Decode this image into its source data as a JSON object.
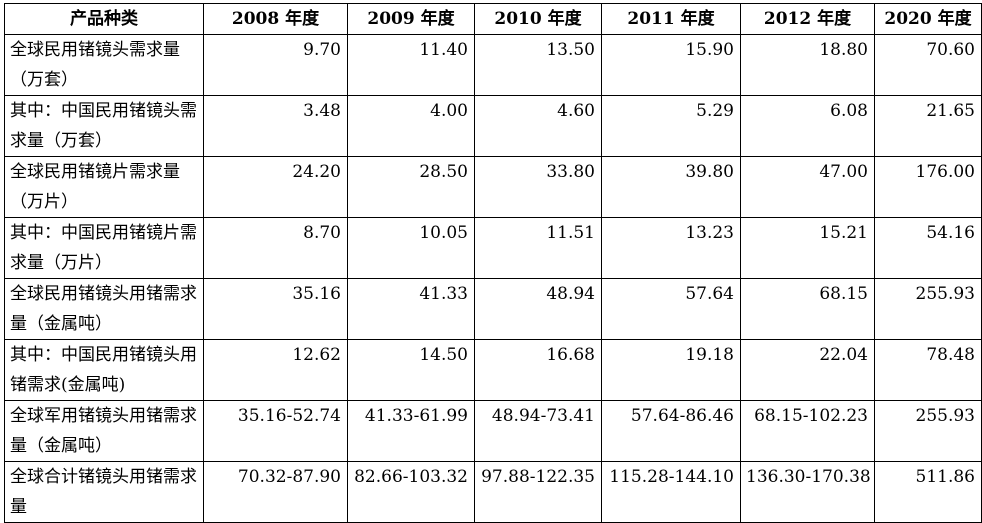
{
  "table": {
    "headers": [
      "产品种类",
      "2008 年度",
      "2009 年度",
      "2010 年度",
      "2011 年度",
      "2012 年度",
      "2020 年度"
    ],
    "rows": [
      {
        "label": "全球民用锗镜头需求量（万套）",
        "values": [
          "9.70",
          "11.40",
          "13.50",
          "15.90",
          "18.80",
          "70.60"
        ]
      },
      {
        "label": "其中：中国民用锗镜头需求量（万套）",
        "values": [
          "3.48",
          "4.00",
          "4.60",
          "5.29",
          "6.08",
          "21.65"
        ]
      },
      {
        "label": "全球民用锗镜片需求量（万片）",
        "values": [
          "24.20",
          "28.50",
          "33.80",
          "39.80",
          "47.00",
          "176.00"
        ]
      },
      {
        "label": "其中：中国民用锗镜片需求量（万片）",
        "values": [
          "8.70",
          "10.05",
          "11.51",
          "13.23",
          "15.21",
          "54.16"
        ]
      },
      {
        "label": "全球民用锗镜头用锗需求量（金属吨）",
        "values": [
          "35.16",
          "41.33",
          "48.94",
          "57.64",
          "68.15",
          "255.93"
        ]
      },
      {
        "label": "其中：中国民用锗镜头用锗需求(金属吨)",
        "values": [
          "12.62",
          "14.50",
          "16.68",
          "19.18",
          "22.04",
          "78.48"
        ]
      },
      {
        "label": "全球军用锗镜头用锗需求量（金属吨）",
        "values": [
          "35.16-52.74",
          "41.33-61.99",
          "48.94-73.41",
          "57.64-86.46",
          "68.15-102.23",
          "255.93"
        ]
      },
      {
        "label": "全球合计锗镜头用锗需求量",
        "values": [
          "70.32-87.90",
          "82.66-103.32",
          "97.88-122.35",
          "115.28-144.10",
          "136.30-170.38",
          "511.86"
        ]
      }
    ]
  }
}
